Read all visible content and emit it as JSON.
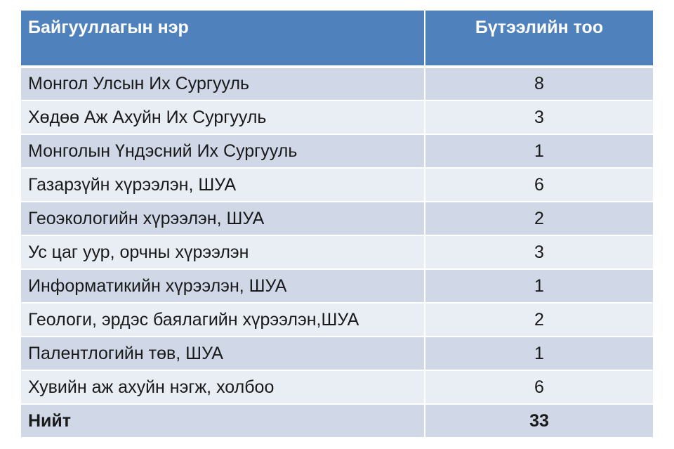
{
  "table": {
    "headers": {
      "organization": "Байгууллагын нэр",
      "count": "Бүтээлийн тоо"
    },
    "rows": [
      {
        "name": "Монгол Улсын Их Сургууль",
        "count": "8"
      },
      {
        "name": "Хөдөө Аж Ахуйн Их Сургууль",
        "count": "3"
      },
      {
        "name": "Монголын Үндэсний Их Сургууль",
        "count": "1"
      },
      {
        "name": "Газарзүйн хүрээлэн, ШУА",
        "count": "6"
      },
      {
        "name": "Геоэкологийн хүрээлэн, ШУА",
        "count": "2"
      },
      {
        "name": "Ус цаг уур, орчны хүрээлэн",
        "count": "3"
      },
      {
        "name": "Информатикийн хүрээлэн, ШУА",
        "count": "1"
      },
      {
        "name": "Геологи, эрдэс баялагийн хүрээлэн,ШУА",
        "count": "2"
      },
      {
        "name": "Палентлогийн төв, ШУА",
        "count": "1"
      },
      {
        "name": "Хувийн аж ахуйн нэгж, холбоо",
        "count": "6"
      }
    ],
    "total": {
      "label": "Нийт",
      "count": "33"
    }
  },
  "colors": {
    "header_bg": "#4f81bd",
    "row_odd_bg": "#d0d8e8",
    "row_even_bg": "#e9edf4"
  }
}
